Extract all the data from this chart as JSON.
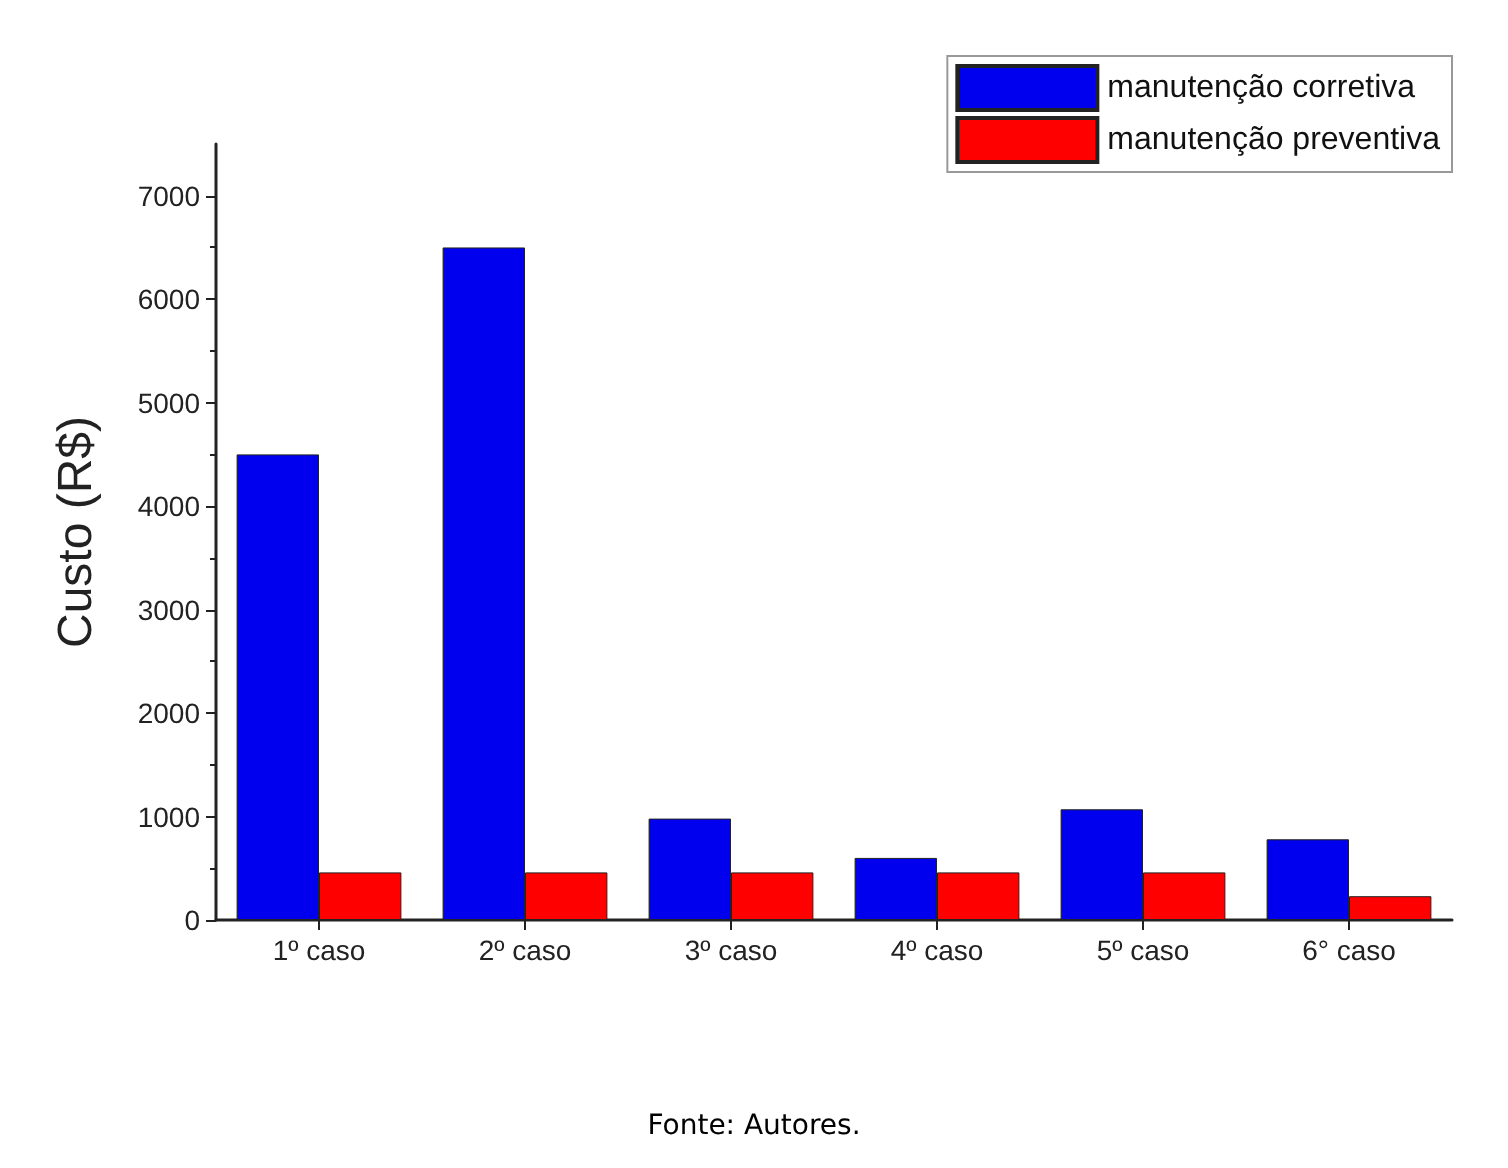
{
  "chart_data": {
    "type": "bar",
    "ylabel": "Custo (R$)",
    "categories": [
      "1º caso",
      "2º caso",
      "3º caso",
      "4º caso",
      "5º caso",
      "6° caso"
    ],
    "series": [
      {
        "name": "manutenção corretiva",
        "color": "#0000ee",
        "values": [
          4500,
          6500,
          980,
          600,
          1070,
          780
        ]
      },
      {
        "name": "manutenção preventiva",
        "color": "#ff0000",
        "values": [
          460,
          460,
          460,
          460,
          460,
          230
        ]
      }
    ],
    "ylim": [
      0,
      7500
    ],
    "yticks": [
      0,
      1000,
      2000,
      3000,
      4000,
      5000,
      6000,
      7000
    ],
    "grid": false,
    "legend": "top right",
    "annotations": [
      "Fonte: Autores."
    ]
  }
}
